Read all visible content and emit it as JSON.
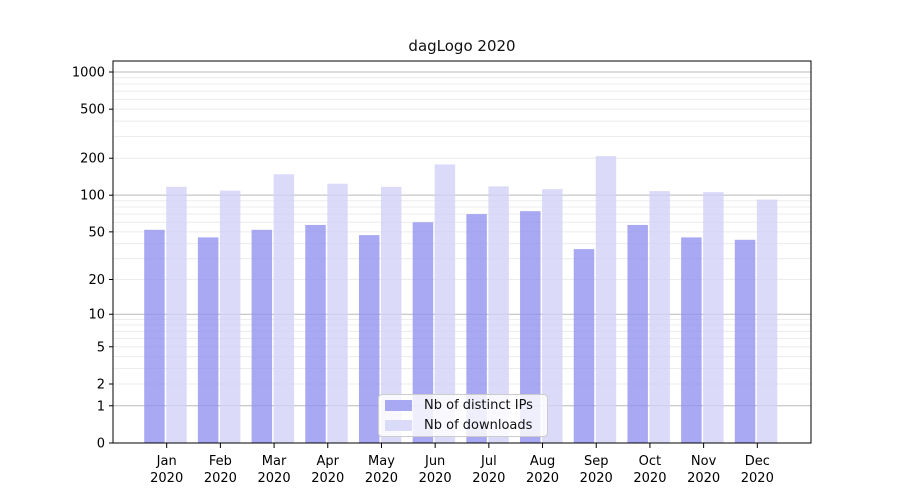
{
  "figure": {
    "title": "dagLogo 2020",
    "background_color": "#ffffff"
  },
  "chart_data": {
    "type": "bar",
    "title": "dagLogo 2020",
    "categories": [
      "Jan",
      "Feb",
      "Mar",
      "Apr",
      "May",
      "Jun",
      "Jul",
      "Aug",
      "Sep",
      "Oct",
      "Nov",
      "Dec"
    ],
    "year": "2020",
    "series": [
      {
        "name": "Nb of distinct IPs",
        "values": [
          52,
          45,
          52,
          57,
          47,
          60,
          70,
          74,
          36,
          57,
          45,
          43
        ],
        "color": "#a9a9f3",
        "fill": "rgba(148,148,240,0.8)"
      },
      {
        "name": "Nb of downloads",
        "values": [
          117,
          109,
          148,
          124,
          117,
          178,
          118,
          112,
          208,
          108,
          106,
          92
        ],
        "color": "#dbdbf8",
        "fill": "rgba(210,210,248,0.8)"
      }
    ],
    "yscale": "symlog (log10 of 1+value)",
    "ytick_values": [
      0,
      1,
      2,
      5,
      10,
      20,
      50,
      100,
      200,
      500,
      1000
    ],
    "ytick_major_gridline_values": [
      1,
      10,
      100,
      1000
    ],
    "ylim": [
      0,
      1300
    ],
    "xlabel": "",
    "ylabel": "",
    "grid": "horizontal minor + major log gridlines",
    "legend_position": "lower center",
    "axis_color": "#000000",
    "gridline_major_color": "#b9b9b9",
    "gridline_minor_color": "#ececec"
  }
}
